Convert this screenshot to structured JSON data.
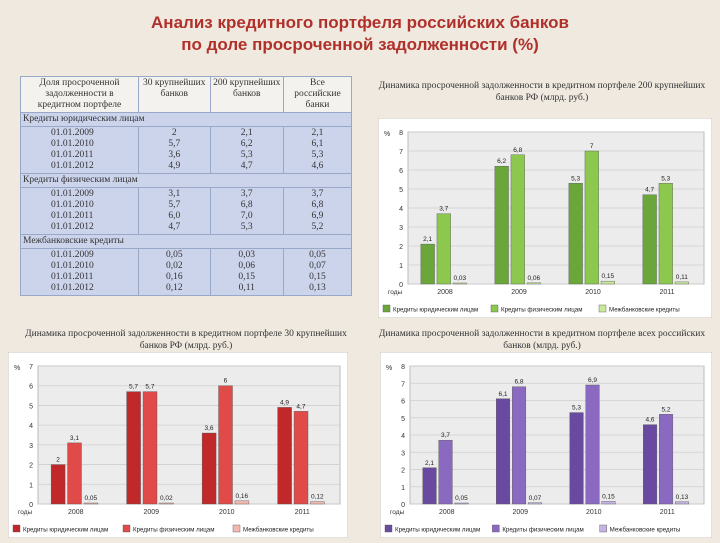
{
  "title_line1": "Анализ кредитного портфеля российских банков",
  "title_line2": "по доле просроченной задолженности (%)",
  "table": {
    "headers": [
      "Доля просроченной задолженности в кредитном портфеле",
      "30 крупнейших банков",
      "200 крупнейших банков",
      "Все российские банки"
    ],
    "sections": [
      {
        "label": "Кредиты юридическим лицам",
        "years": "01.01.2009\n01.01.2010\n01.01.2011\n01.01.2012",
        "c30": "2\n5,7\n3,6\n4,9",
        "c200": "2,1\n6,2\n5,3\n4,7",
        "call": "2,1\n6,1\n5,3\n4,6"
      },
      {
        "label": "Кредиты физическим лицам",
        "years": "01.01.2009\n01.01.2010\n01.01.2011\n01.01.2012",
        "c30": "3,1\n5,7\n6,0\n4,7",
        "c200": "3,7\n6,8\n7,0\n5,3",
        "call": "3,7\n6,8\n6,9\n5,2"
      },
      {
        "label": "Межбанковские кредиты",
        "years": "01.01.2009\n01.01.2010\n01.01.2011\n01.01.2012",
        "c30": "0,05\n0,02\n0,16\n0,12",
        "c200": "0,03\n0,06\n0,15\n0,11",
        "call": "0,05\n0,07\n0,15\n0,13"
      }
    ]
  },
  "captions": {
    "c200": "Динамика просроченной задолженности в кредитном портфеле 200 крупнейших банков РФ (млрд. руб.)",
    "c30": "Динамика просроченной задолженности в кредитном портфеле 30 крупнейших банков РФ (млрд. руб.)",
    "call": "Динамика просроченной задолженности в кредитном портфеле всех российских банков (млрд. руб.)"
  },
  "chart_data": [
    {
      "type": "bar",
      "ylabel": "%",
      "xlabel": "годы",
      "categories": [
        "2008",
        "2009",
        "2010",
        "2011"
      ],
      "ylim": [
        0,
        8
      ],
      "series": [
        {
          "name": "Кредиты юридическим лицам",
          "values": [
            2.1,
            6.2,
            5.3,
            4.7
          ],
          "labels": [
            "2,1",
            "6,2",
            "5,3",
            "4,7"
          ],
          "color": "#6aa63a"
        },
        {
          "name": "Кредиты физическим лицам",
          "values": [
            3.7,
            6.8,
            7.0,
            5.3
          ],
          "labels": [
            "3,7",
            "6,8",
            "7",
            "5,3"
          ],
          "color": "#8cc84e"
        },
        {
          "name": "Межбанковские кредиты",
          "values": [
            0.03,
            0.06,
            0.15,
            0.11
          ],
          "labels": [
            "0,03",
            "0,06",
            "0,15",
            "0,11"
          ],
          "color": "#c8e89a"
        }
      ]
    },
    {
      "type": "bar",
      "ylabel": "%",
      "xlabel": "годы",
      "categories": [
        "2008",
        "2009",
        "2010",
        "2011"
      ],
      "ylim": [
        0,
        7
      ],
      "series": [
        {
          "name": "Кредиты юридическим лицам",
          "values": [
            2,
            5.7,
            3.6,
            4.9
          ],
          "labels": [
            "2",
            "5,7",
            "3,6",
            "4,9"
          ],
          "color": "#c0282a"
        },
        {
          "name": "Кредиты физическим лицам",
          "values": [
            3.1,
            5.7,
            6.0,
            4.7
          ],
          "labels": [
            "3,1",
            "5,7",
            "6",
            "4,7"
          ],
          "color": "#e04a48"
        },
        {
          "name": "Межбанковские кредиты",
          "values": [
            0.05,
            0.02,
            0.16,
            0.12
          ],
          "labels": [
            "0,05",
            "0,02",
            "0,16",
            "0,12"
          ],
          "color": "#f4b8b0"
        }
      ]
    },
    {
      "type": "bar",
      "ylabel": "%",
      "xlabel": "годы",
      "categories": [
        "2008",
        "2009",
        "2010",
        "2011"
      ],
      "ylim": [
        0,
        8
      ],
      "series": [
        {
          "name": "Кредиты юридическим лицам",
          "values": [
            2.1,
            6.1,
            5.3,
            4.6
          ],
          "labels": [
            "2,1",
            "6,1",
            "5,3",
            "4,6"
          ],
          "color": "#6a4aa0"
        },
        {
          "name": "Кредиты физическим лицам",
          "values": [
            3.7,
            6.8,
            6.9,
            5.2
          ],
          "labels": [
            "3,7",
            "6,8",
            "6,9",
            "5,2"
          ],
          "color": "#8a6ac0"
        },
        {
          "name": "Межбанковские кредиты",
          "values": [
            0.05,
            0.07,
            0.15,
            0.13
          ],
          "labels": [
            "0,05",
            "0,07",
            "0,15",
            "0,13"
          ],
          "color": "#c4b4e4"
        }
      ]
    }
  ]
}
